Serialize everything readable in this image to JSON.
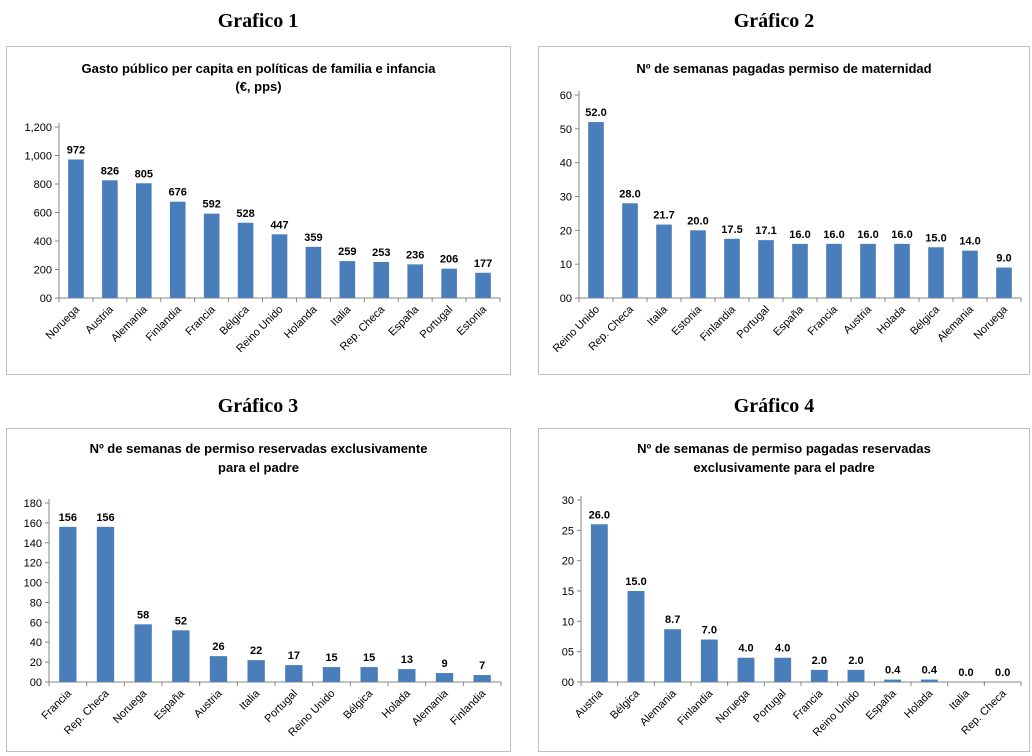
{
  "chart_data": [
    {
      "heading": "Grafico 1",
      "type": "bar",
      "title": "Gasto público per capita en políticas de familia e infancia",
      "subtitle": "(€, pps)",
      "categories": [
        "Noruega",
        "Austria",
        "Alemania",
        "Finlandia",
        "Francia",
        "Bélgica",
        "Reino Unido",
        "Holanda",
        "Italia",
        "Rep. Checa",
        "España",
        "Portugal",
        "Estonia"
      ],
      "values": [
        972,
        826,
        805,
        676,
        592,
        528,
        447,
        359,
        259,
        253,
        236,
        206,
        177
      ],
      "value_labels": [
        "972",
        "826",
        "805",
        "676",
        "592",
        "528",
        "447",
        "359",
        "259",
        "253",
        "236",
        "206",
        "177"
      ],
      "ylim": [
        0,
        1200
      ],
      "yticks": [
        0,
        200,
        400,
        600,
        800,
        1000,
        1200
      ],
      "ytick_labels": [
        "00",
        "200",
        "400",
        "600",
        "800",
        "1,000",
        "1,200"
      ],
      "color": "#4a7ebb",
      "grid": false,
      "legend": "none"
    },
    {
      "heading": "Gráfico 2",
      "type": "bar",
      "title": "Nº de semanas pagadas permiso de maternidad",
      "subtitle": "",
      "categories": [
        "Reino Unido",
        "Rep. Checa",
        "Italia",
        "Estonia",
        "Finlandia",
        "Portugal",
        "España",
        "Francia",
        "Austria",
        "Holada",
        "Bélgica",
        "Alemania",
        "Noruega"
      ],
      "values": [
        52.0,
        28.0,
        21.7,
        20.0,
        17.5,
        17.1,
        16.0,
        16.0,
        16.0,
        16.0,
        15.0,
        14.0,
        9.0
      ],
      "value_labels": [
        "52.0",
        "28.0",
        "21.7",
        "20.0",
        "17.5",
        "17.1",
        "16.0",
        "16.0",
        "16.0",
        "16.0",
        "15.0",
        "14.0",
        "9.0"
      ],
      "ylim": [
        0,
        60
      ],
      "yticks": [
        0,
        10,
        20,
        30,
        40,
        50,
        60
      ],
      "ytick_labels": [
        "00",
        "10",
        "20",
        "30",
        "40",
        "50",
        "60"
      ],
      "color": "#4a7ebb",
      "grid": false,
      "legend": "none"
    },
    {
      "heading": "Gráfico 3",
      "type": "bar",
      "title": "Nº de semanas de permiso reservadas exclusivamente",
      "subtitle": "para el padre",
      "categories": [
        "Francia",
        "Rep. Checa",
        "Noruega",
        "España",
        "Austria",
        "Italia",
        "Portugal",
        "Reino Unido",
        "Bélgica",
        "Holada",
        "Alemania",
        "Finlandia"
      ],
      "values": [
        156,
        156,
        58,
        52,
        26,
        22,
        17,
        15,
        15,
        13,
        9,
        7
      ],
      "value_labels": [
        "156",
        "156",
        "58",
        "52",
        "26",
        "22",
        "17",
        "15",
        "15",
        "13",
        "9",
        "7"
      ],
      "ylim": [
        0,
        180
      ],
      "yticks": [
        0,
        20,
        40,
        60,
        80,
        100,
        120,
        140,
        160,
        180
      ],
      "ytick_labels": [
        "00",
        "20",
        "40",
        "60",
        "80",
        "100",
        "120",
        "140",
        "160",
        "180"
      ],
      "color": "#4a7ebb",
      "grid": false,
      "legend": "none"
    },
    {
      "heading": "Gráfico 4",
      "type": "bar",
      "title": "Nº de semanas de permiso pagadas reservadas",
      "subtitle": "exclusivamente para el padre",
      "categories": [
        "Austria",
        "Bélgica",
        "Alemania",
        "Finlandia",
        "Noruega",
        "Portugal",
        "Francia",
        "Reino Unido",
        "España",
        "Holada",
        "Italia",
        "Rep. Checa"
      ],
      "values": [
        26.0,
        15.0,
        8.7,
        7.0,
        4.0,
        4.0,
        2.0,
        2.0,
        0.4,
        0.4,
        0.0,
        0.0
      ],
      "value_labels": [
        "26.0",
        "15.0",
        "8.7",
        "7.0",
        "4.0",
        "4.0",
        "2.0",
        "2.0",
        "0.4",
        "0.4",
        "0.0",
        "0.0"
      ],
      "ylim": [
        0,
        30
      ],
      "yticks": [
        0,
        5,
        10,
        15,
        20,
        25,
        30
      ],
      "ytick_labels": [
        "00",
        "05",
        "10",
        "15",
        "20",
        "25",
        "30"
      ],
      "color": "#4a7ebb",
      "grid": false,
      "legend": "none"
    }
  ]
}
